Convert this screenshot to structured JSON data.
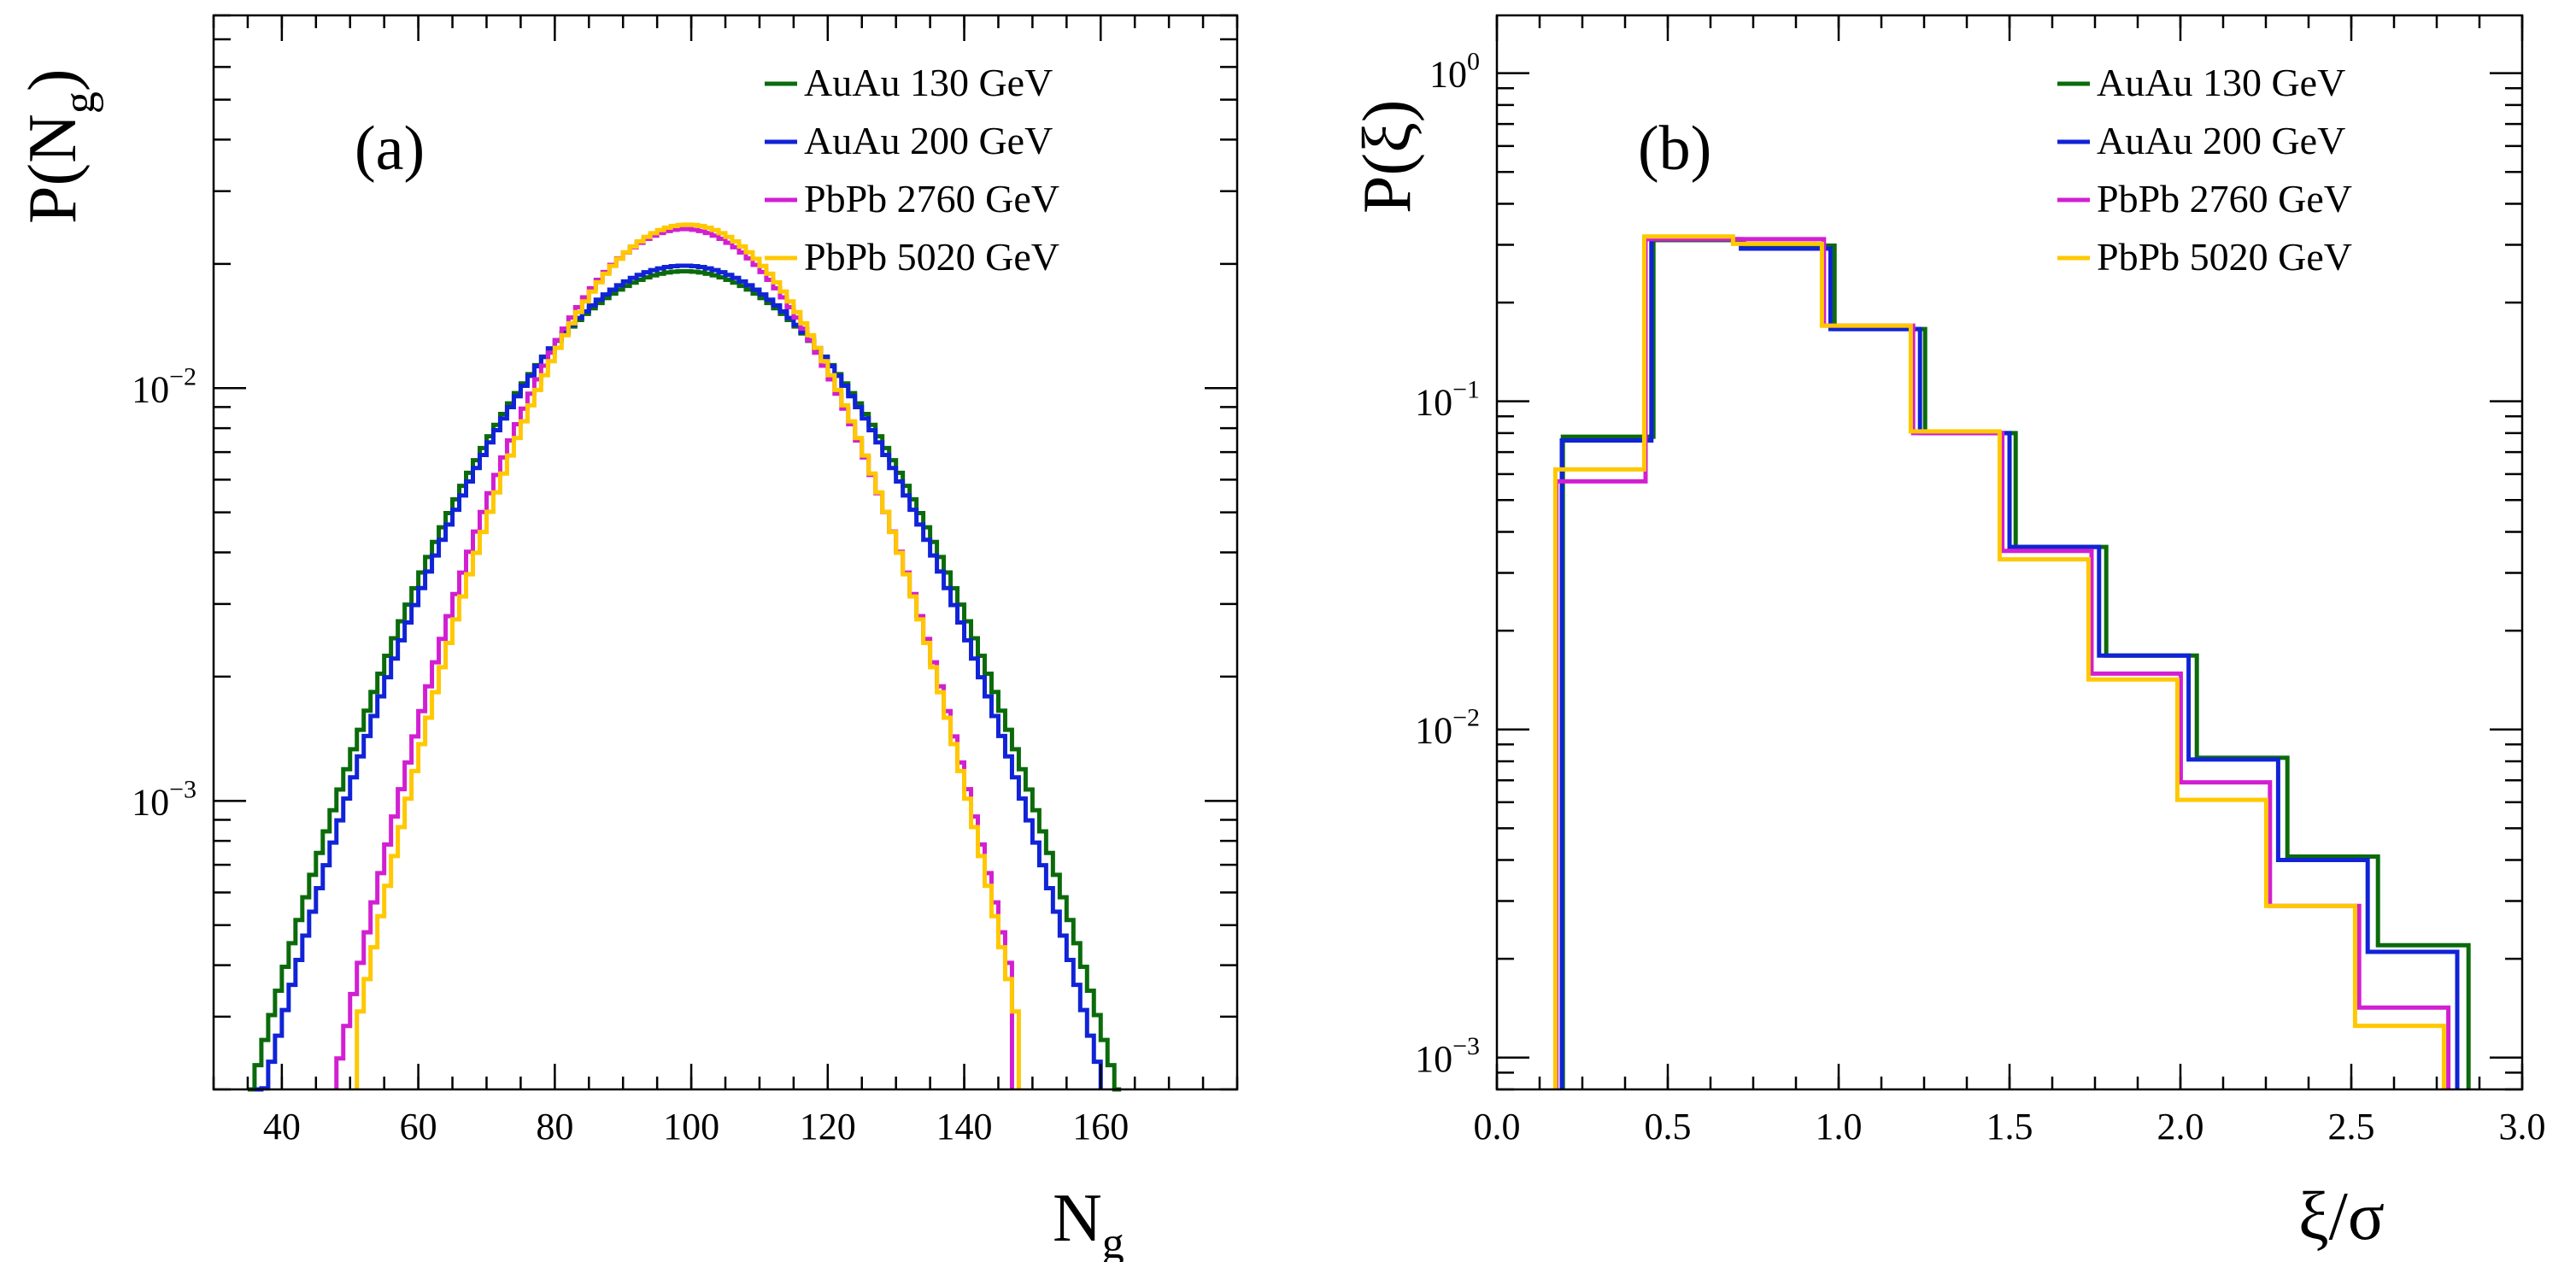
{
  "colors": {
    "AuAu130": "#0b6b0b",
    "AuAu200": "#1023d6",
    "PbPb2760": "#d21fd2",
    "PbPb5020": "#ffc800"
  },
  "chart_data": [
    {
      "type": "line",
      "panel_label": "(a)",
      "xlabel": "N",
      "xlabel_sub": "g",
      "ylabel": "P(N",
      "ylabel_sub": "g",
      "ylabel_close": ")",
      "xlim": [
        30,
        180
      ],
      "ylim": [
        0.0002,
        0.08
      ],
      "yscale": "log",
      "xticks": [
        40,
        60,
        80,
        100,
        120,
        140,
        160
      ],
      "xtick_labels": [
        "40",
        "60",
        "80",
        "100",
        "120",
        "140",
        "160"
      ],
      "yticks": [
        {
          "value": 0.01,
          "base": "10",
          "exp": "−2"
        },
        {
          "value": 0.001,
          "base": "10",
          "exp": "−3"
        }
      ],
      "legend_position": "top-right",
      "bin_width": 1,
      "series": [
        {
          "name": "AuAu 130 GeV",
          "color": "#0b6b0b",
          "mean": 99,
          "sigma": 21.0,
          "peak": 0.0192,
          "range": [
            35,
            163
          ]
        },
        {
          "name": "AuAu 200 GeV",
          "color": "#1023d6",
          "mean": 99,
          "sigma": 20.3,
          "peak": 0.0198,
          "range": [
            36,
            160
          ]
        },
        {
          "name": "PbPb 2760 GeV",
          "color": "#d21fd2",
          "mean": 99,
          "sigma": 16.6,
          "peak": 0.0243,
          "range": [
            48,
            147
          ]
        },
        {
          "name": "PbPb 5020 GeV",
          "color": "#ffc800",
          "mean": 99.5,
          "sigma": 16.2,
          "peak": 0.0249,
          "range": [
            51,
            148
          ]
        }
      ]
    },
    {
      "type": "line",
      "panel_label": "(b)",
      "xlabel": "ξ/σ",
      "ylabel": "P(ξ)",
      "xlim": [
        0.0,
        3.0
      ],
      "ylim": [
        0.0008,
        1.5
      ],
      "yscale": "log",
      "xticks": [
        0.0,
        0.5,
        1.0,
        1.5,
        2.0,
        2.5,
        3.0
      ],
      "xtick_labels": [
        "0.0",
        "0.5",
        "1.0",
        "1.5",
        "2.0",
        "2.5",
        "3.0"
      ],
      "yticks": [
        {
          "value": 1,
          "base": "10",
          "exp": "0"
        },
        {
          "value": 0.1,
          "base": "10",
          "exp": "−1"
        },
        {
          "value": 0.01,
          "base": "10",
          "exp": "−2"
        },
        {
          "value": 0.001,
          "base": "10",
          "exp": "−3"
        }
      ],
      "legend_position": "top-right",
      "series": [
        {
          "name": "AuAu 130 GeV",
          "color": "#0b6b0b",
          "edges": [
            0.193,
            0.458,
            0.723,
            0.988,
            1.253,
            1.518,
            1.783,
            2.048,
            2.313,
            2.578,
            2.843
          ],
          "values": [
            0.078,
            0.31,
            0.298,
            0.166,
            0.08,
            0.036,
            0.0168,
            0.0082,
            0.0041,
            0.0022
          ]
        },
        {
          "name": "AuAu 200 GeV",
          "color": "#1023d6",
          "edges": [
            0.19,
            0.452,
            0.714,
            0.976,
            1.238,
            1.5,
            1.762,
            2.024,
            2.286,
            2.548,
            2.81
          ],
          "values": [
            0.076,
            0.312,
            0.292,
            0.166,
            0.08,
            0.036,
            0.0168,
            0.0081,
            0.004,
            0.0021
          ]
        },
        {
          "name": "PbPb 2760 GeV",
          "color": "#d21fd2",
          "edges": [
            0.174,
            0.435,
            0.696,
            0.957,
            1.218,
            1.479,
            1.74,
            2.001,
            2.262,
            2.523,
            2.784
          ],
          "values": [
            0.057,
            0.312,
            0.312,
            0.17,
            0.08,
            0.035,
            0.0148,
            0.0069,
            0.0029,
            0.00142
          ]
        },
        {
          "name": "PbPb 5020 GeV",
          "color": "#ffc800",
          "edges": [
            0.171,
            0.431,
            0.691,
            0.951,
            1.211,
            1.471,
            1.731,
            1.991,
            2.251,
            2.511,
            2.771
          ],
          "values": [
            0.062,
            0.318,
            0.302,
            0.17,
            0.081,
            0.033,
            0.0142,
            0.0061,
            0.0029,
            0.00125
          ]
        }
      ]
    }
  ]
}
